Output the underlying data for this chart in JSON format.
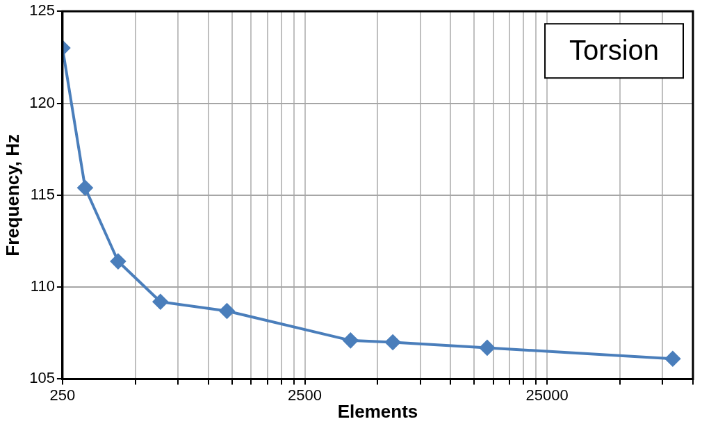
{
  "chart_data": {
    "type": "line",
    "xlabel": "Elements",
    "ylabel": "Frequency, Hz",
    "log": "x",
    "x": [
      250,
      310,
      424,
      634,
      1193,
      3862,
      5770,
      14150,
      82500
    ],
    "series": [
      {
        "color": "#4a7ebb",
        "values": [
          123.0,
          115.4,
          111.4,
          109.2,
          108.7,
          107.1,
          107.0,
          106.7,
          106.1
        ]
      }
    ],
    "xlim": [
      250,
      100000
    ],
    "xticks": [
      250,
      {
        "value": 500,
        "label": null
      },
      {
        "value": 750,
        "label": null
      },
      {
        "value": 1000,
        "label": null
      },
      {
        "value": 1250,
        "label": null
      },
      {
        "value": 1500,
        "label": null
      },
      {
        "value": 1750,
        "label": null
      },
      {
        "value": 2000,
        "label": null
      },
      {
        "value": 2250,
        "label": null
      },
      2500,
      {
        "value": 5000,
        "label": null
      },
      {
        "value": 7500,
        "label": null
      },
      {
        "value": 10000,
        "label": null
      },
      {
        "value": 12500,
        "label": null
      },
      {
        "value": 15000,
        "label": null
      },
      {
        "value": 17500,
        "label": null
      },
      {
        "value": 20000,
        "label": null
      },
      {
        "value": 22500,
        "label": null
      },
      25000,
      {
        "value": 50000,
        "label": null
      },
      {
        "value": 75000,
        "label": null
      },
      {
        "value": 100000,
        "label": null
      }
    ],
    "ylim": [
      105,
      125
    ],
    "yticks": [
      105,
      110,
      115,
      120,
      125
    ],
    "grid": true,
    "marker": "diamond",
    "line_style": "solid",
    "legend": false,
    "annotations": [
      "Torsion"
    ]
  }
}
